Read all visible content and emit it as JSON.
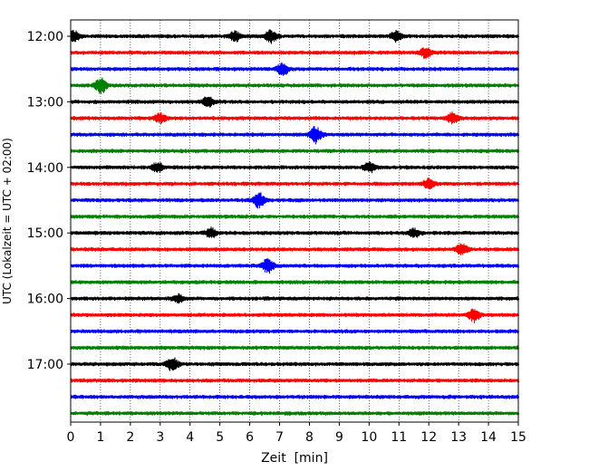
{
  "chart_data": {
    "type": "line",
    "description_kind": "helicorder seismogram",
    "xlabel": "Zeit  [min]",
    "ylabel": "UTC (Lokalzeit = UTC + 02:00)",
    "xlim": [
      0,
      15
    ],
    "x_ticks": [
      "0",
      "1",
      "2",
      "3",
      "4",
      "5",
      "6",
      "7",
      "8",
      "9",
      "10",
      "11",
      "12",
      "13",
      "14",
      "15"
    ],
    "y_ticks": [
      "12:00",
      "13:00",
      "14:00",
      "15:00",
      "16:00",
      "17:00"
    ],
    "grid": "vertical dotted lines at each minute",
    "trace_colors": [
      "#000000",
      "#ff0000",
      "#0000ff",
      "#008000"
    ],
    "rows": [
      {
        "start": "12:00",
        "color": "#000000"
      },
      {
        "start": "12:15",
        "color": "#ff0000"
      },
      {
        "start": "12:30",
        "color": "#0000ff"
      },
      {
        "start": "12:45",
        "color": "#008000"
      },
      {
        "start": "13:00",
        "color": "#000000"
      },
      {
        "start": "13:15",
        "color": "#ff0000"
      },
      {
        "start": "13:30",
        "color": "#0000ff"
      },
      {
        "start": "13:45",
        "color": "#008000"
      },
      {
        "start": "14:00",
        "color": "#000000"
      },
      {
        "start": "14:15",
        "color": "#ff0000"
      },
      {
        "start": "14:30",
        "color": "#0000ff"
      },
      {
        "start": "14:45",
        "color": "#008000"
      },
      {
        "start": "15:00",
        "color": "#000000"
      },
      {
        "start": "15:15",
        "color": "#ff0000"
      },
      {
        "start": "15:30",
        "color": "#0000ff"
      },
      {
        "start": "15:45",
        "color": "#008000"
      },
      {
        "start": "16:00",
        "color": "#000000"
      },
      {
        "start": "16:15",
        "color": "#ff0000"
      },
      {
        "start": "16:30",
        "color": "#0000ff"
      },
      {
        "start": "16:45",
        "color": "#008000"
      },
      {
        "start": "17:00",
        "color": "#000000"
      },
      {
        "start": "17:15",
        "color": "#ff0000"
      },
      {
        "start": "17:30",
        "color": "#0000ff"
      },
      {
        "start": "17:45",
        "color": "#008000"
      }
    ],
    "bursts": [
      {
        "row": 0,
        "minute": 0.1,
        "amplitude": 0.6
      },
      {
        "row": 0,
        "minute": 5.5,
        "amplitude": 0.55
      },
      {
        "row": 0,
        "minute": 6.7,
        "amplitude": 0.7
      },
      {
        "row": 0,
        "minute": 10.9,
        "amplitude": 0.55
      },
      {
        "row": 1,
        "minute": 11.9,
        "amplitude": 0.6
      },
      {
        "row": 2,
        "minute": 7.1,
        "amplitude": 0.7
      },
      {
        "row": 3,
        "minute": 1.0,
        "amplitude": 0.9
      },
      {
        "row": 4,
        "minute": 4.6,
        "amplitude": 0.55
      },
      {
        "row": 5,
        "minute": 3.0,
        "amplitude": 0.5
      },
      {
        "row": 5,
        "minute": 12.8,
        "amplitude": 0.65
      },
      {
        "row": 6,
        "minute": 8.2,
        "amplitude": 0.95
      },
      {
        "row": 8,
        "minute": 2.9,
        "amplitude": 0.55
      },
      {
        "row": 8,
        "minute": 10.0,
        "amplitude": 0.55
      },
      {
        "row": 9,
        "minute": 12.0,
        "amplitude": 0.6
      },
      {
        "row": 10,
        "minute": 6.3,
        "amplitude": 0.85
      },
      {
        "row": 12,
        "minute": 4.7,
        "amplitude": 0.55
      },
      {
        "row": 12,
        "minute": 11.5,
        "amplitude": 0.5
      },
      {
        "row": 13,
        "minute": 13.1,
        "amplitude": 0.65
      },
      {
        "row": 14,
        "minute": 6.6,
        "amplitude": 0.85
      },
      {
        "row": 16,
        "minute": 3.6,
        "amplitude": 0.45
      },
      {
        "row": 17,
        "minute": 13.5,
        "amplitude": 0.75
      },
      {
        "row": 20,
        "minute": 3.4,
        "amplitude": 0.85
      }
    ]
  }
}
